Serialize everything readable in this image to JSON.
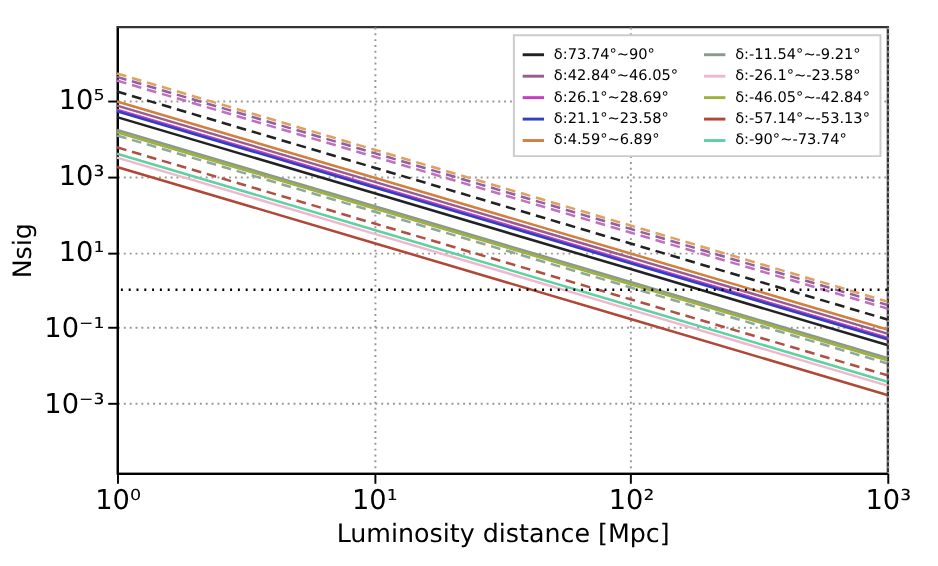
{
  "chart_data": {
    "type": "line",
    "xlabel": "Luminosity distance [Mpc]",
    "ylabel": "Nsig",
    "log": "xy",
    "grid": true,
    "legend": "top right",
    "xlim": [
      1,
      1000
    ],
    "xticks": [
      {
        "value": 1,
        "label": "10⁰"
      },
      {
        "value": 10,
        "label": "10¹"
      },
      {
        "value": 100,
        "label": "10²"
      },
      {
        "value": 1000,
        "label": "10³"
      }
    ],
    "ylim": [
      1.5e-05,
      8500000
    ],
    "yticks": [
      {
        "value": 0.001,
        "label": "10⁻³"
      },
      {
        "value": 0.1,
        "label": "10⁻¹"
      },
      {
        "value": 10,
        "label": "10¹"
      },
      {
        "value": 1000,
        "label": "10³"
      },
      {
        "value": 100000,
        "label": "10⁵"
      }
    ],
    "ref_lines": [
      {
        "axis": "y",
        "value": 1,
        "color": "#000000",
        "line_style": "dotted"
      }
    ],
    "x": [
      1,
      10,
      100,
      1000
    ],
    "series": [
      {
        "name": "δ:73.74°~90°",
        "color": "#222222",
        "values": [
          35000,
          350,
          3.5,
          0.035
        ]
      },
      {
        "name": "δ:42.84°~46.05°",
        "color": "#9b5b8f",
        "values": [
          70000,
          700,
          7,
          0.07
        ]
      },
      {
        "name": "δ:26.1°~28.69°",
        "color": "#c040c0",
        "values": [
          55000,
          550,
          5.5,
          0.055
        ]
      },
      {
        "name": "δ:21.1°~23.58°",
        "color": "#3040c0",
        "values": [
          50000,
          500,
          5,
          0.05
        ]
      },
      {
        "name": "δ:4.59°~6.89°",
        "color": "#d08040",
        "values": [
          90000,
          900,
          9,
          0.09
        ]
      },
      {
        "name": "δ:-11.54°~-9.21°",
        "color": "#8a9a8a",
        "values": [
          16000,
          160,
          1.6,
          0.016
        ]
      },
      {
        "name": "δ:-26.1°~-23.58°",
        "color": "#f0b8d0",
        "values": [
          3000,
          30,
          0.3,
          0.003
        ]
      },
      {
        "name": "δ:-46.05°~-42.84°",
        "color": "#a0b040",
        "values": [
          14000,
          140,
          1.4,
          0.014
        ]
      },
      {
        "name": "δ:-57.14°~-53.13°",
        "color": "#b04838",
        "values": [
          1700,
          17,
          0.17,
          0.0017
        ]
      },
      {
        "name": "δ:-90°~-73.74°",
        "color": "#60d0a0",
        "values": [
          3800,
          38,
          0.38,
          0.0038
        ]
      },
      {
        "color": "#e0a060",
        "line_style": "dashed",
        "values": [
          490000,
          4900,
          49,
          0.49
        ]
      },
      {
        "color": "#9060a0",
        "line_style": "dashed",
        "values": [
          400000,
          4000,
          40,
          0.4
        ]
      },
      {
        "color": "#c070c0",
        "line_style": "dashed",
        "values": [
          320000,
          3200,
          32,
          0.32
        ]
      },
      {
        "color": "#222222",
        "line_style": "dashed",
        "values": [
          165000,
          1650,
          16.5,
          0.165
        ]
      },
      {
        "color": "#90a898",
        "line_style": "dashed",
        "values": [
          11500,
          115,
          1.15,
          0.0115
        ]
      },
      {
        "color": "#b05040",
        "line_style": "dashed",
        "values": [
          5600,
          56,
          0.56,
          0.0056
        ]
      }
    ]
  }
}
